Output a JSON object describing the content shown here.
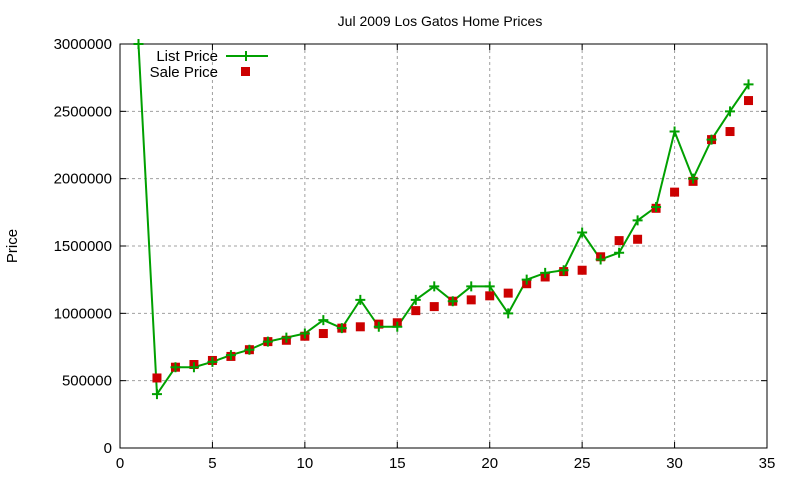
{
  "chart_data": {
    "type": "line",
    "title": "Jul 2009 Los Gatos Home Prices",
    "xlabel": "",
    "ylabel": "Price",
    "xlim": [
      0,
      35
    ],
    "ylim": [
      0,
      3000000
    ],
    "xticks": [
      0,
      5,
      10,
      15,
      20,
      25,
      30,
      35
    ],
    "yticks": [
      0,
      500000,
      1000000,
      1500000,
      2000000,
      2500000,
      3000000
    ],
    "grid": true,
    "legend_position": "top-left",
    "series": [
      {
        "name": "List Price",
        "style": "linespoints",
        "color": "#00a000",
        "marker": "plus",
        "x": [
          1,
          2,
          3,
          4,
          5,
          6,
          7,
          8,
          9,
          10,
          11,
          12,
          13,
          14,
          15,
          16,
          17,
          18,
          19,
          20,
          21,
          22,
          23,
          24,
          25,
          26,
          27,
          28,
          29,
          30,
          31,
          32,
          33,
          34
        ],
        "y": [
          3000000,
          400000,
          600000,
          600000,
          640000,
          690000,
          730000,
          790000,
          820000,
          850000,
          950000,
          890000,
          1100000,
          900000,
          900000,
          1100000,
          1200000,
          1090000,
          1200000,
          1200000,
          1000000,
          1250000,
          1300000,
          1320000,
          1600000,
          1400000,
          1450000,
          1690000,
          1790000,
          2350000,
          2000000,
          2290000,
          2500000,
          2700000
        ]
      },
      {
        "name": "Sale Price",
        "style": "points",
        "color": "#cc0000",
        "marker": "square",
        "x": [
          2,
          3,
          4,
          5,
          6,
          7,
          8,
          9,
          10,
          11,
          12,
          13,
          14,
          15,
          16,
          17,
          18,
          19,
          20,
          21,
          22,
          23,
          24,
          25,
          26,
          27,
          28,
          29,
          30,
          31,
          32,
          33,
          34
        ],
        "y": [
          520000,
          600000,
          620000,
          650000,
          680000,
          730000,
          790000,
          800000,
          830000,
          850000,
          890000,
          900000,
          920000,
          930000,
          1020000,
          1050000,
          1090000,
          1100000,
          1130000,
          1150000,
          1220000,
          1270000,
          1310000,
          1320000,
          1420000,
          1540000,
          1550000,
          1780000,
          1900000,
          1980000,
          2290000,
          2350000,
          2580000
        ]
      }
    ]
  }
}
